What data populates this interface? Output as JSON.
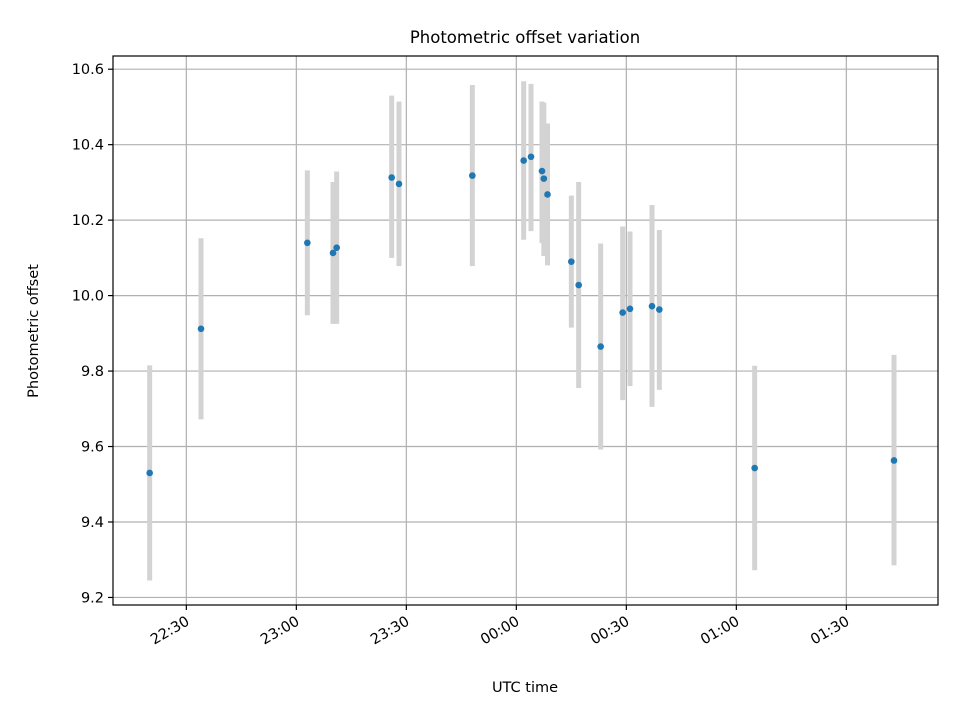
{
  "chart_data": {
    "type": "scatter",
    "title": "Photometric offset variation",
    "xlabel": "UTC time",
    "ylabel": "Photometric offset",
    "x_axis_kind": "time",
    "xlim": [
      "22:10",
      "01:55"
    ],
    "ylim": [
      9.18,
      10.635
    ],
    "x_ticks": [
      "22:30",
      "23:00",
      "23:30",
      "00:00",
      "00:30",
      "01:00",
      "01:30"
    ],
    "y_ticks": [
      "9.2",
      "9.4",
      "9.6",
      "9.8",
      "10.0",
      "10.2",
      "10.4",
      "10.6"
    ],
    "grid": true,
    "legend": "none",
    "colors": {
      "points": "#1f77b4",
      "error_bars": "#d3d3d3",
      "grid": "#b0b0b0"
    },
    "points": [
      {
        "x": "22:20",
        "y": 9.53,
        "ylow": 9.245,
        "yhigh": 9.815
      },
      {
        "x": "22:34",
        "y": 9.912,
        "ylow": 9.672,
        "yhigh": 10.152
      },
      {
        "x": "23:03",
        "y": 10.14,
        "ylow": 9.948,
        "yhigh": 10.332
      },
      {
        "x": "23:10",
        "y": 10.113,
        "ylow": 9.925,
        "yhigh": 10.301
      },
      {
        "x": "23:11",
        "y": 10.127,
        "ylow": 9.925,
        "yhigh": 10.329
      },
      {
        "x": "23:26",
        "y": 10.313,
        "ylow": 10.1,
        "yhigh": 10.53
      },
      {
        "x": "23:28",
        "y": 10.296,
        "ylow": 10.078,
        "yhigh": 10.514
      },
      {
        "x": "23:48",
        "y": 10.318,
        "ylow": 10.078,
        "yhigh": 10.558
      },
      {
        "x": "00:02",
        "y": 10.358,
        "ylow": 10.148,
        "yhigh": 10.568
      },
      {
        "x": "00:04",
        "y": 10.368,
        "ylow": 10.171,
        "yhigh": 10.561
      },
      {
        "x": "00:07",
        "y": 10.33,
        "ylow": 10.139,
        "yhigh": 10.514
      },
      {
        "x": "00:07:30",
        "y": 10.31,
        "ylow": 10.105,
        "yhigh": 10.511
      },
      {
        "x": "00:08:30",
        "y": 10.268,
        "ylow": 10.08,
        "yhigh": 10.456
      },
      {
        "x": "00:15",
        "y": 10.09,
        "ylow": 9.915,
        "yhigh": 10.265
      },
      {
        "x": "00:17",
        "y": 10.028,
        "ylow": 9.755,
        "yhigh": 10.301
      },
      {
        "x": "00:23",
        "y": 9.865,
        "ylow": 9.592,
        "yhigh": 10.138
      },
      {
        "x": "00:29",
        "y": 9.955,
        "ylow": 9.723,
        "yhigh": 10.183
      },
      {
        "x": "00:31",
        "y": 9.965,
        "ylow": 9.76,
        "yhigh": 10.17
      },
      {
        "x": "00:37",
        "y": 9.972,
        "ylow": 9.705,
        "yhigh": 10.24
      },
      {
        "x": "00:39",
        "y": 9.963,
        "ylow": 9.75,
        "yhigh": 10.174
      },
      {
        "x": "01:05",
        "y": 9.543,
        "ylow": 9.272,
        "yhigh": 9.814
      },
      {
        "x": "01:43",
        "y": 9.563,
        "ylow": 9.285,
        "yhigh": 9.843
      }
    ]
  }
}
